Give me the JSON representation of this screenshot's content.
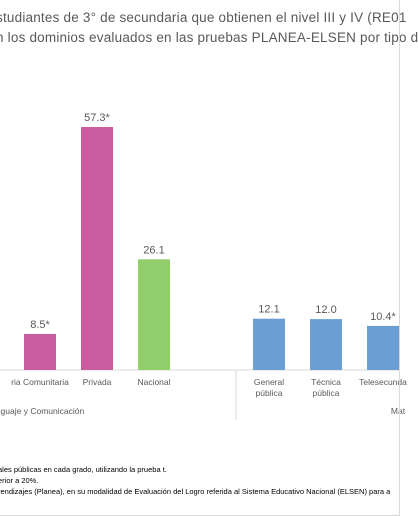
{
  "title_lines": [
    "studiantes de 3° de secundaria que obtienen el nivel III y IV  (RE01",
    "n los dominios evaluados en las pruebas PLANEA-ELSEN por tipo d"
  ],
  "notes": [
    "ales públicas en cada grado, utilizando la prueba t.",
    "erior a 20%.",
    "rendizajes (Planea), en su modalidad de Evaluación del Logro referida al Sistema Educativo Nacional (ELSEN) para a"
  ],
  "colors": {
    "comunitaria": "#c95d9f",
    "privada": "#c95d9f",
    "nacional": "#92cd6b",
    "matematicas": "#6b9fd4",
    "text": "#595959",
    "axis": "#d9d9d9"
  },
  "chart_data": {
    "type": "bar",
    "title": "",
    "xlabel": "",
    "ylabel": "",
    "ylim": [
      0,
      60
    ],
    "grid": false,
    "groups": [
      {
        "label": "nguaje y Comunicación",
        "bars": [
          {
            "category": "ria Comunitaria",
            "value": 8.5,
            "label": "8.5*",
            "color_key": "comunitaria"
          },
          {
            "category": "Privada",
            "value": 57.3,
            "label": "57.3*",
            "color_key": "privada"
          },
          {
            "category": "Nacional",
            "value": 26.1,
            "label": "26.1",
            "color_key": "nacional"
          }
        ]
      },
      {
        "label": "Mat",
        "bars": [
          {
            "category": "General pública",
            "lines": [
              "General",
              "pública"
            ],
            "value": 12.1,
            "label": "12.1",
            "color_key": "matematicas"
          },
          {
            "category": "Técnica pública",
            "lines": [
              "Técnica",
              "pública"
            ],
            "value": 12.0,
            "label": "12.0",
            "color_key": "matematicas"
          },
          {
            "category": "Telesecundaria",
            "lines": [
              "Telesecunda"
            ],
            "value": 10.4,
            "label": "10.4*",
            "color_key": "matematicas"
          }
        ]
      }
    ]
  }
}
